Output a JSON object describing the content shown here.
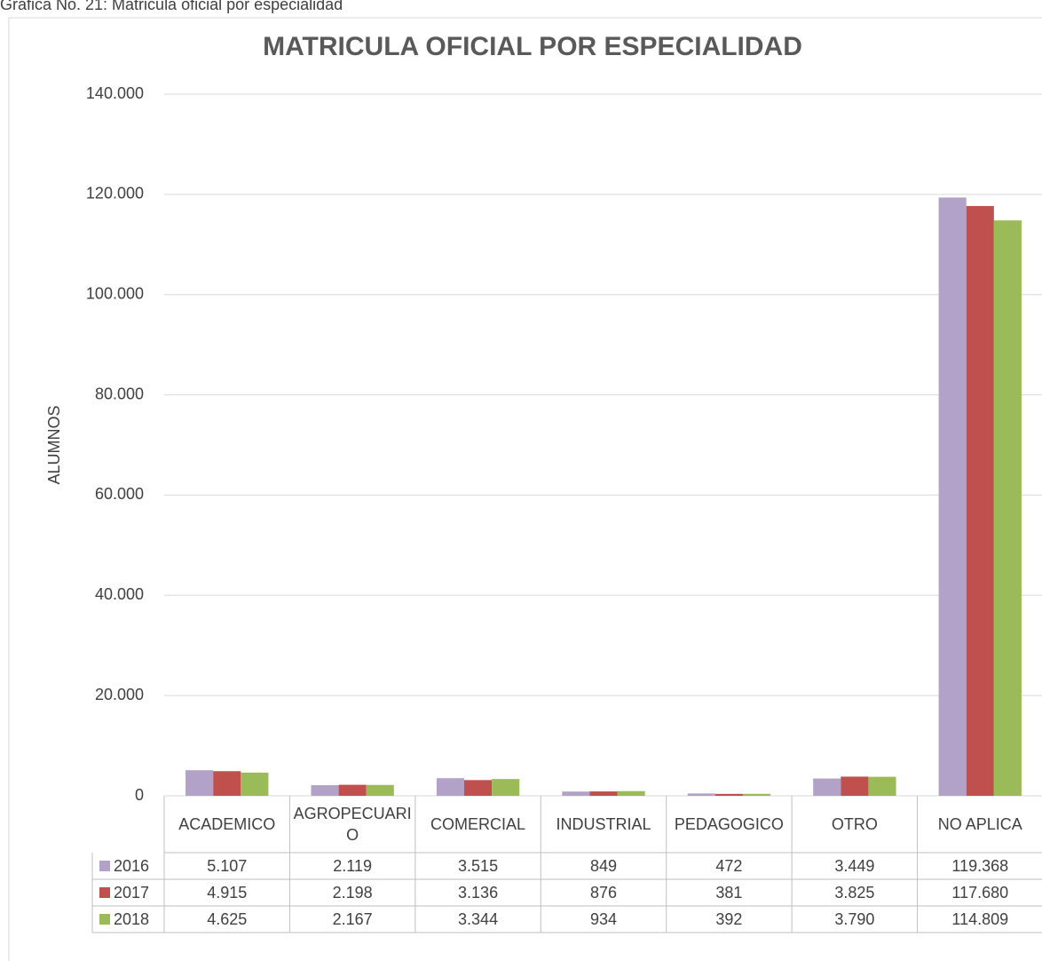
{
  "caption": "Gráfica No. 21: Matricula oficial por especialidad",
  "chart_data": {
    "type": "bar",
    "title": "MATRICULA OFICIAL POR ESPECIALIDAD",
    "y_label": "ALUMNOS",
    "categories": [
      "ACADEMICO",
      "AGROPECUARIO",
      "COMERCIAL",
      "INDUSTRIAL",
      "PEDAGOGICO",
      "OTRO",
      "NO APLICA"
    ],
    "series": [
      {
        "name": "2016",
        "color": "#b3a2c7",
        "values": [
          5107,
          2119,
          3515,
          849,
          472,
          3449,
          119368
        ],
        "value_labels": [
          "5.107",
          "2.119",
          "3.515",
          "849",
          "472",
          "3.449",
          "119.368"
        ]
      },
      {
        "name": "2017",
        "color": "#c0504d",
        "values": [
          4915,
          2198,
          3136,
          876,
          381,
          3825,
          117680
        ],
        "value_labels": [
          "4.915",
          "2.198",
          "3.136",
          "876",
          "381",
          "3.825",
          "117.680"
        ]
      },
      {
        "name": "2018",
        "color": "#9bbb59",
        "values": [
          4625,
          2167,
          3344,
          934,
          392,
          3790,
          114809
        ],
        "value_labels": [
          "4.625",
          "2.167",
          "3.344",
          "934",
          "392",
          "3.790",
          "114.809"
        ]
      }
    ],
    "ylim": [
      0,
      140000
    ],
    "yticks": [
      0,
      {
        "value": 20000,
        "label": "20.000"
      },
      {
        "value": 40000,
        "label": "40.000"
      },
      {
        "value": 60000,
        "label": "60.000"
      },
      {
        "value": 80000,
        "label": "80.000"
      },
      {
        "value": 100000,
        "label": "100.000"
      },
      {
        "value": 120000,
        "label": "120.000"
      },
      {
        "value": 140000,
        "label": "140.000"
      }
    ],
    "grid": true
  }
}
